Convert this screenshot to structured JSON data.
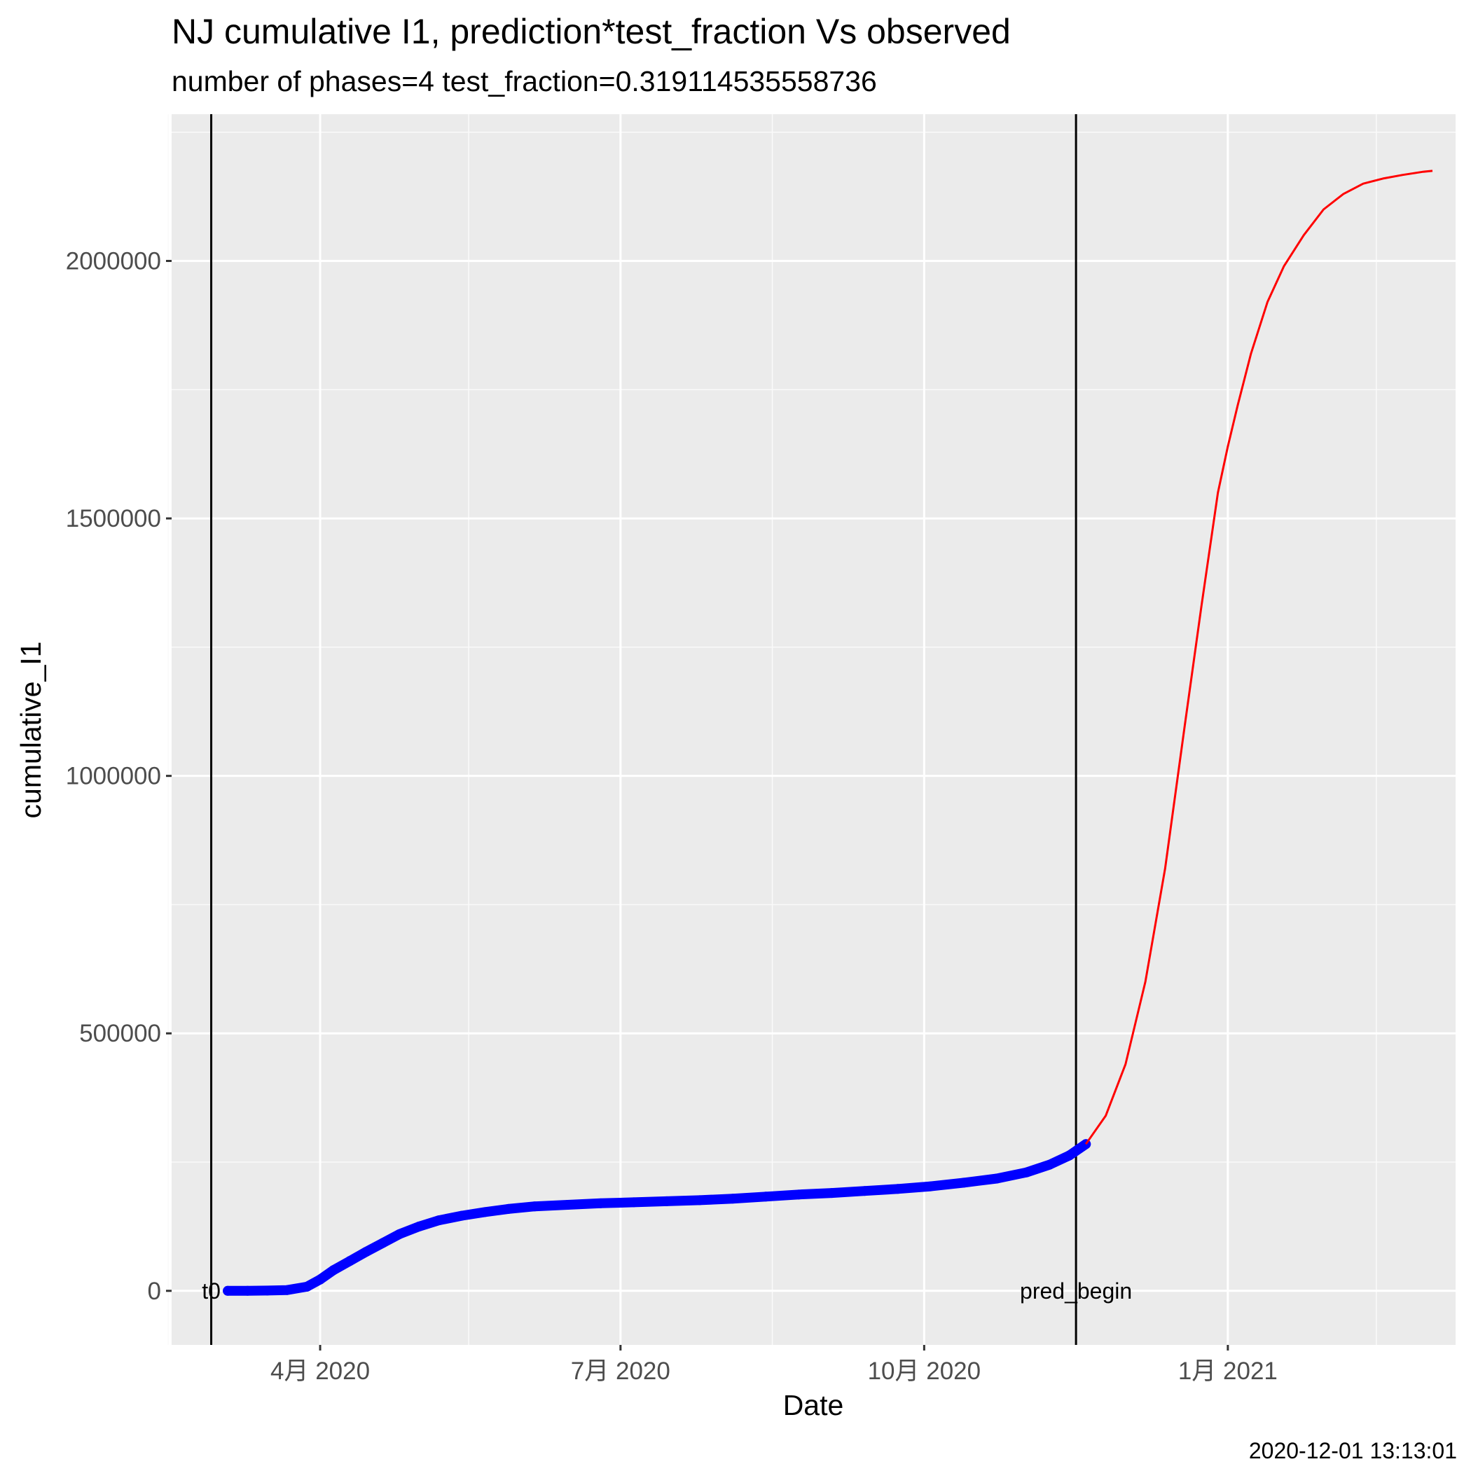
{
  "chart_data": {
    "type": "line",
    "title": "NJ cumulative I1,  prediction*test_fraction Vs observed",
    "subtitle": "number of phases=4   test_fraction=0.319114535558736",
    "xlabel": "Date",
    "ylabel": "cumulative_I1",
    "caption": "2020-12-01 13:13:01",
    "xlim": [
      "2020-02-16",
      "2021-03-11"
    ],
    "ylim": [
      -105000,
      2285000
    ],
    "grid": true,
    "legend": "none",
    "x_ticks": [
      {
        "date": "2020-04-01",
        "label": "4月 2020"
      },
      {
        "date": "2020-07-01",
        "label": "7月 2020"
      },
      {
        "date": "2020-10-01",
        "label": "10月 2020"
      },
      {
        "date": "2021-01-01",
        "label": "1月 2021"
      }
    ],
    "x_minor_ticks": [
      "2020-02-15",
      "2020-05-16",
      "2020-08-16",
      "2020-11-16",
      "2021-02-15"
    ],
    "y_ticks": [
      {
        "value": 0,
        "label": "0"
      },
      {
        "value": 500000,
        "label": "500000"
      },
      {
        "value": 1000000,
        "label": "1000000"
      },
      {
        "value": 1500000,
        "label": "1500000"
      },
      {
        "value": 2000000,
        "label": "2000000"
      }
    ],
    "y_minor_ticks": [
      250000,
      750000,
      1250000,
      1750000,
      2250000
    ],
    "vlines": [
      {
        "date": "2020-02-28",
        "label": "t0"
      },
      {
        "date": "2020-11-16",
        "label": "pred_begin"
      }
    ],
    "series": [
      {
        "kind": "observed-points",
        "color": "#0000ff",
        "x": [
          "2020-03-04",
          "2020-03-10",
          "2020-03-16",
          "2020-03-22",
          "2020-03-28",
          "2020-04-01",
          "2020-04-05",
          "2020-04-10",
          "2020-04-15",
          "2020-04-20",
          "2020-04-25",
          "2020-05-01",
          "2020-05-07",
          "2020-05-14",
          "2020-05-21",
          "2020-05-28",
          "2020-06-05",
          "2020-06-15",
          "2020-06-25",
          "2020-07-05",
          "2020-07-15",
          "2020-07-25",
          "2020-08-04",
          "2020-08-14",
          "2020-08-24",
          "2020-09-03",
          "2020-09-13",
          "2020-09-23",
          "2020-10-03",
          "2020-10-13",
          "2020-10-23",
          "2020-11-01",
          "2020-11-08",
          "2020-11-14",
          "2020-11-19"
        ],
        "y": [
          0,
          0,
          500,
          1500,
          8000,
          22000,
          40000,
          58000,
          76000,
          93000,
          110000,
          125000,
          137000,
          146000,
          153000,
          159000,
          164000,
          167000,
          170000,
          172000,
          174000,
          176000,
          179000,
          183000,
          187000,
          190000,
          194000,
          198000,
          203000,
          210000,
          218000,
          230000,
          245000,
          263000,
          285000
        ]
      },
      {
        "kind": "prediction-line",
        "color": "#ff0000",
        "x": [
          "2020-11-19",
          "2020-11-25",
          "2020-12-01",
          "2020-12-07",
          "2020-12-13",
          "2020-12-19",
          "2020-12-24",
          "2020-12-29",
          "2021-01-01",
          "2021-01-04",
          "2021-01-08",
          "2021-01-13",
          "2021-01-18",
          "2021-01-24",
          "2021-01-30",
          "2021-02-05",
          "2021-02-11",
          "2021-02-17",
          "2021-02-23",
          "2021-03-01",
          "2021-03-04"
        ],
        "y": [
          285000,
          340000,
          440000,
          600000,
          820000,
          1100000,
          1330000,
          1550000,
          1640000,
          1720000,
          1820000,
          1920000,
          1990000,
          2050000,
          2100000,
          2130000,
          2150000,
          2160000,
          2167000,
          2173000,
          2175000
        ]
      }
    ]
  }
}
